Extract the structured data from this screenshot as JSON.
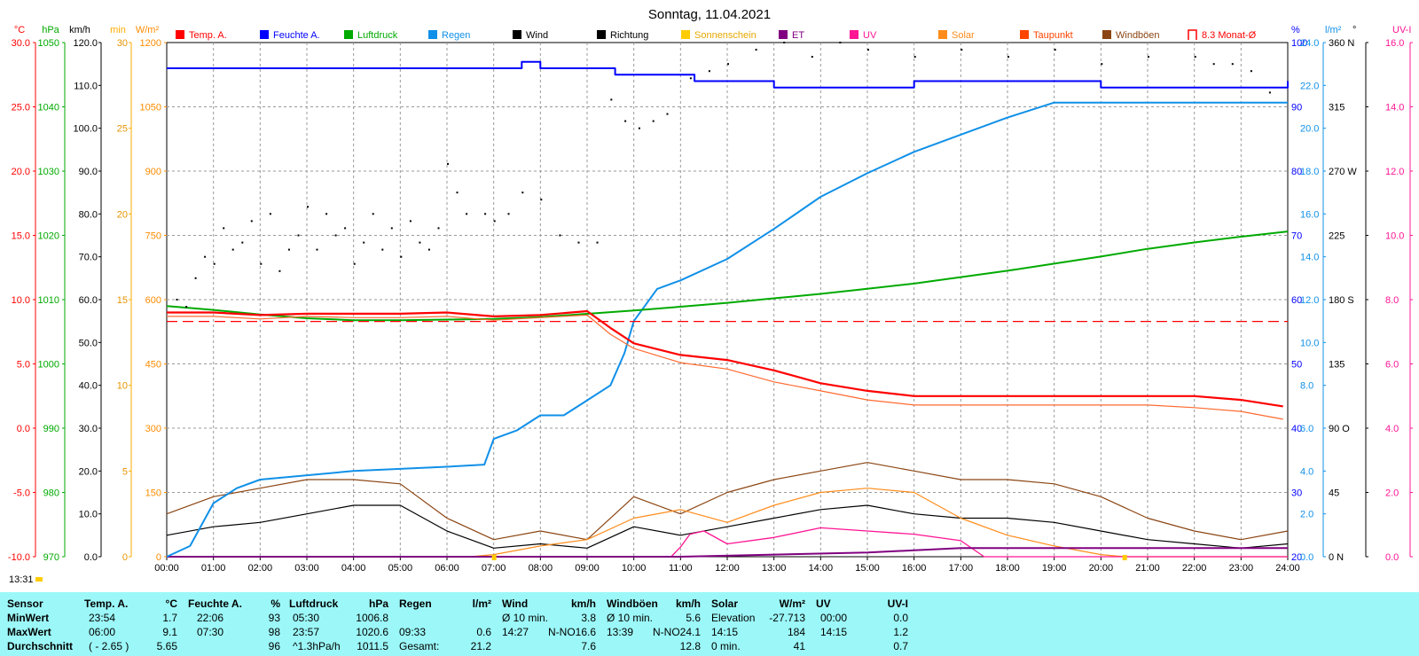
{
  "title": "Sonntag, 11.04.2021",
  "time_marker": "13:31",
  "legend": [
    {
      "label": "Temp. A.",
      "color": "#ff0000"
    },
    {
      "label": "Feuchte A.",
      "color": "#0000ff"
    },
    {
      "label": "Luftdruck",
      "color": "#00aa00"
    },
    {
      "label": "Regen",
      "color": "#1090e8"
    },
    {
      "label": "Wind",
      "color": "#000000"
    },
    {
      "label": "Richtung",
      "color": "#000000"
    },
    {
      "label": "Sonnenschein",
      "color": "#ffcc00"
    },
    {
      "label": "ET",
      "color": "#800080"
    },
    {
      "label": "UV",
      "color": "#ff1493"
    },
    {
      "label": "Solar",
      "color": "#ff8c1a"
    },
    {
      "label": "Taupunkt",
      "color": "#ff4500"
    },
    {
      "label": "Windböen",
      "color": "#8b4513"
    },
    {
      "label": "8.3 Monat-Ø",
      "color": "#ff0000"
    }
  ],
  "chart_data": {
    "type": "line",
    "title": "Sonntag, 11.04.2021",
    "x_ticks": [
      "00:00",
      "01:00",
      "02:00",
      "03:00",
      "04:00",
      "05:00",
      "06:00",
      "07:00",
      "08:00",
      "09:00",
      "10:00",
      "11:00",
      "12:00",
      "13:00",
      "14:00",
      "15:00",
      "16:00",
      "17:00",
      "18:00",
      "19:00",
      "20:00",
      "21:00",
      "22:00",
      "23:00",
      "24:00"
    ],
    "grid": true,
    "left_axes": [
      {
        "unit": "°C",
        "color": "#ff0000",
        "ticks": [
          "30.0",
          "25.0",
          "20.0",
          "15.0",
          "10.0",
          "5.0",
          "0.0",
          "-5.0",
          "-10.0"
        ]
      },
      {
        "unit": "hPa",
        "color": "#00aa00",
        "ticks": [
          "1050",
          "1040",
          "1030",
          "1020",
          "1010",
          "1000",
          "990",
          "980",
          "970"
        ]
      },
      {
        "unit": "km/h",
        "color": "#000000",
        "ticks": [
          "120.0",
          "110.0",
          "100.0",
          "90.0",
          "80.0",
          "70.0",
          "60.0",
          "50.0",
          "40.0",
          "30.0",
          "20.0",
          "10.0",
          "0.0"
        ]
      },
      {
        "unit": "min",
        "color": "#ffaa00",
        "ticks": [
          "30",
          "25",
          "20",
          "15",
          "10",
          "5",
          "0"
        ]
      },
      {
        "unit": "W/m²",
        "color": "#ff8c00",
        "ticks": [
          "1200",
          "1050",
          "900",
          "750",
          "600",
          "450",
          "300",
          "150",
          "0"
        ]
      }
    ],
    "right_axes": [
      {
        "unit": "%",
        "color": "#0000ff",
        "ticks": [
          "100",
          "90",
          "80",
          "70",
          "60",
          "50",
          "40",
          "30",
          "20"
        ]
      },
      {
        "unit": "l/m²",
        "color": "#1090e8",
        "ticks": [
          "24.0",
          "22.0",
          "20.0",
          "18.0",
          "16.0",
          "14.0",
          "12.0",
          "10.0",
          "8.0",
          "6.0",
          "4.0",
          "2.0",
          "0.0"
        ]
      },
      {
        "unit": "°",
        "color": "#000000",
        "ticks": [
          "360 N",
          "315",
          "270 W",
          "225",
          "180 S",
          "135",
          "90 O",
          "45",
          "0 N"
        ]
      },
      {
        "unit": "UV-I",
        "color": "#ff1493",
        "ticks": [
          "16.0",
          "14.0",
          "12.0",
          "10.0",
          "8.0",
          "6.0",
          "4.0",
          "2.0",
          "0.0"
        ]
      }
    ],
    "series": [
      {
        "name": "Temp. A.",
        "unit": "°C",
        "x": [
          0,
          1,
          2,
          3,
          4,
          5,
          6,
          7,
          8,
          9,
          9.5,
          10,
          11,
          12,
          13,
          14,
          15,
          16,
          17,
          18,
          19,
          20,
          21,
          22,
          23,
          23.9
        ],
        "values": [
          9.0,
          9.0,
          8.8,
          8.9,
          8.9,
          8.9,
          9.0,
          8.7,
          8.8,
          9.1,
          7.8,
          6.6,
          5.7,
          5.3,
          4.5,
          3.5,
          2.9,
          2.5,
          2.5,
          2.5,
          2.5,
          2.5,
          2.5,
          2.5,
          2.2,
          1.7
        ]
      },
      {
        "name": "Taupunkt",
        "unit": "°C",
        "x": [
          0,
          1,
          2,
          3,
          4,
          5,
          6,
          7,
          8,
          9,
          9.5,
          10,
          11,
          12,
          13,
          14,
          15,
          16,
          17,
          18,
          19,
          20,
          21,
          22,
          23,
          23.9
        ],
        "values": [
          8.7,
          8.7,
          8.5,
          8.7,
          8.6,
          8.6,
          8.7,
          8.4,
          8.6,
          8.8,
          7.3,
          6.2,
          5.1,
          4.6,
          3.6,
          2.9,
          2.2,
          1.8,
          1.8,
          1.8,
          1.8,
          1.8,
          1.8,
          1.6,
          1.3,
          0.7
        ]
      },
      {
        "name": "Feuchte A.",
        "unit": "%",
        "x": [
          0,
          7.3,
          7.6,
          8.0,
          9.2,
          9.6,
          10.2,
          11.3,
          13.0,
          16.0,
          19.0,
          20.0,
          22.5,
          23.7,
          24.0
        ],
        "values": [
          96,
          96,
          97,
          96,
          96,
          95,
          95,
          94,
          93,
          94,
          94,
          93,
          93,
          93,
          94
        ]
      },
      {
        "name": "Luftdruck",
        "unit": "hPa",
        "x": [
          0,
          1,
          2,
          3,
          4,
          5,
          6,
          7,
          8,
          9,
          10,
          11,
          12,
          13,
          14,
          15,
          16,
          17,
          18,
          19,
          20,
          21,
          22,
          23,
          24
        ],
        "values": [
          1009.0,
          1008.4,
          1007.7,
          1007.1,
          1006.8,
          1006.8,
          1006.9,
          1007.0,
          1007.3,
          1007.8,
          1008.3,
          1008.9,
          1009.5,
          1010.2,
          1010.9,
          1011.7,
          1012.5,
          1013.5,
          1014.5,
          1015.6,
          1016.7,
          1017.9,
          1018.9,
          1019.8,
          1020.6
        ]
      },
      {
        "name": "Regen",
        "unit": "l/m²",
        "x": [
          0,
          0.5,
          1,
          1.5,
          2,
          4,
          6,
          6.8,
          7.0,
          7.5,
          8,
          8.5,
          9,
          9.5,
          9.8,
          10,
          10.5,
          11,
          12,
          13,
          14,
          15,
          16,
          17,
          18,
          19,
          19.2,
          20,
          21,
          22,
          23,
          24
        ],
        "values": [
          0,
          0.5,
          2.5,
          3.2,
          3.6,
          4.0,
          4.2,
          4.3,
          5.5,
          5.9,
          6.6,
          6.6,
          7.3,
          8.0,
          9.5,
          11.0,
          12.5,
          12.9,
          13.9,
          15.3,
          16.8,
          17.9,
          18.9,
          19.7,
          20.5,
          21.2,
          21.2,
          21.2,
          21.2,
          21.2,
          21.2,
          21.2
        ]
      },
      {
        "name": "8.3 Monat-Ø",
        "unit": "°C",
        "x": [
          0,
          24
        ],
        "values": [
          8.3,
          8.3
        ]
      },
      {
        "name": "Wind",
        "unit": "km/h",
        "x": [
          0,
          1,
          2,
          3,
          4,
          5,
          6,
          7,
          8,
          9,
          10,
          11,
          12,
          13,
          14,
          15,
          16,
          17,
          18,
          19,
          20,
          21,
          22,
          23,
          24
        ],
        "values": [
          5,
          7,
          8,
          10,
          12,
          12,
          6,
          2,
          3,
          2,
          7,
          5,
          7,
          9,
          11,
          12,
          10,
          9,
          9,
          8,
          6,
          4,
          3,
          2,
          3
        ]
      },
      {
        "name": "Windböen",
        "unit": "km/h",
        "x": [
          0,
          1,
          2,
          3,
          4,
          5,
          6,
          7,
          8,
          9,
          10,
          11,
          12,
          13,
          14,
          15,
          16,
          17,
          18,
          19,
          20,
          21,
          22,
          23,
          24
        ],
        "values": [
          10,
          14,
          16,
          18,
          18,
          17,
          9,
          4,
          6,
          4,
          14,
          10,
          15,
          18,
          20,
          22,
          20,
          18,
          18,
          17,
          14,
          9,
          6,
          4,
          6
        ]
      },
      {
        "name": "Solar",
        "unit": "W/m²",
        "x": [
          0,
          6.5,
          7,
          8,
          9,
          10,
          11,
          12,
          13,
          14,
          15,
          16,
          17,
          18,
          19,
          20,
          20.5,
          24
        ],
        "values": [
          0,
          0,
          5,
          25,
          40,
          90,
          110,
          80,
          120,
          150,
          160,
          150,
          90,
          50,
          25,
          5,
          0,
          0
        ]
      },
      {
        "name": "UV",
        "unit": "UV-I",
        "x": [
          0,
          10.8,
          11,
          11.2,
          11.5,
          12,
          13,
          14,
          15,
          16,
          17,
          17.5,
          24
        ],
        "values": [
          0,
          0,
          0.3,
          0.7,
          0.8,
          0.4,
          0.6,
          0.9,
          0.8,
          0.7,
          0.5,
          0,
          0
        ]
      },
      {
        "name": "ET",
        "unit": "l/m²",
        "x": [
          0,
          11,
          13,
          15,
          16,
          17,
          18,
          24
        ],
        "values": [
          0,
          0,
          0.1,
          0.2,
          0.3,
          0.4,
          0.4,
          0.4
        ]
      }
    ],
    "direction_points_deg": [
      [
        0.2,
        180
      ],
      [
        0.4,
        175
      ],
      [
        0.6,
        195
      ],
      [
        0.8,
        210
      ],
      [
        1.0,
        205
      ],
      [
        1.2,
        230
      ],
      [
        1.4,
        215
      ],
      [
        1.6,
        220
      ],
      [
        1.8,
        235
      ],
      [
        2.0,
        205
      ],
      [
        2.2,
        240
      ],
      [
        2.4,
        200
      ],
      [
        2.6,
        215
      ],
      [
        2.8,
        225
      ],
      [
        3.0,
        245
      ],
      [
        3.2,
        215
      ],
      [
        3.4,
        240
      ],
      [
        3.6,
        225
      ],
      [
        3.8,
        230
      ],
      [
        4.0,
        205
      ],
      [
        4.2,
        220
      ],
      [
        4.4,
        240
      ],
      [
        4.6,
        215
      ],
      [
        4.8,
        230
      ],
      [
        5.0,
        210
      ],
      [
        5.2,
        235
      ],
      [
        5.4,
        220
      ],
      [
        5.6,
        215
      ],
      [
        5.8,
        230
      ],
      [
        6.0,
        275
      ],
      [
        6.2,
        255
      ],
      [
        6.4,
        240
      ],
      [
        6.8,
        240
      ],
      [
        7.0,
        235
      ],
      [
        7.3,
        240
      ],
      [
        7.6,
        255
      ],
      [
        8.0,
        250
      ],
      [
        8.4,
        225
      ],
      [
        8.8,
        220
      ],
      [
        9.2,
        220
      ],
      [
        9.5,
        320
      ],
      [
        9.8,
        305
      ],
      [
        10.1,
        300
      ],
      [
        10.4,
        305
      ],
      [
        10.7,
        310
      ],
      [
        11.2,
        335
      ],
      [
        11.6,
        340
      ],
      [
        12.0,
        345
      ],
      [
        12.6,
        355
      ],
      [
        13.2,
        360
      ],
      [
        13.8,
        350
      ],
      [
        14.4,
        360
      ],
      [
        15.0,
        355
      ],
      [
        16.0,
        350
      ],
      [
        17.0,
        355
      ],
      [
        18.0,
        350
      ],
      [
        19.0,
        355
      ],
      [
        20.0,
        345
      ],
      [
        21.0,
        350
      ],
      [
        22.0,
        350
      ],
      [
        22.4,
        345
      ],
      [
        22.8,
        345
      ],
      [
        23.2,
        340
      ],
      [
        23.6,
        325
      ]
    ],
    "stats": {
      "headers": {
        "sensor": "Sensor",
        "temp": "Temp. A.",
        "temp_unit": "°C",
        "hum": "Feuchte A.",
        "hum_unit": "%",
        "press": "Luftdruck",
        "press_unit": "hPa",
        "rain": "Regen",
        "rain_unit": "l/m²",
        "wind": "Wind",
        "wind_unit": "km/h",
        "gust": "Windböen",
        "gust_unit": "km/h",
        "solar": "Solar",
        "solar_unit": "W/m²",
        "uv": "UV",
        "uv_unit": "UV-I"
      },
      "rows": [
        {
          "label": "MinWert",
          "temp_time": "23:54",
          "temp": "1.7",
          "hum_time": "22:06",
          "hum": "93",
          "press_time": "05:30",
          "press": "1006.8",
          "rain_time": "",
          "rain": "",
          "wind_label": "Ø 10 min.",
          "wind_dir": "",
          "wind": "3.8",
          "gust_label": "Ø 10 min.",
          "gust_dir": "",
          "gust": "5.6",
          "solar_label": "Elevation",
          "solar": "-27.713",
          "uv_time": "00:00",
          "uv": "0.0"
        },
        {
          "label": "MaxWert",
          "temp_time": "06:00",
          "temp": "9.1",
          "hum_time": "07:30",
          "hum": "98",
          "press_time": "23:57",
          "press": "1020.6",
          "rain_time": "09:33",
          "rain": "0.6",
          "wind_label": "14:27",
          "wind_dir": "N-NO",
          "wind": "16.6",
          "gust_label": "13:39",
          "gust_dir": "N-NO",
          "gust": "24.1",
          "solar_label": "14:15",
          "solar": "184",
          "uv_time": "14:15",
          "uv": "1.2"
        },
        {
          "label": "Durchschnitt",
          "temp_time": "( - 2.65 )",
          "temp": "5.65",
          "hum_time": "",
          "hum": "96",
          "press_time": "^1.3hPa/h",
          "press": "1011.5",
          "rain_time": "Gesamt:",
          "rain": "21.2",
          "wind_label": "",
          "wind_dir": "",
          "wind": "7.6",
          "gust_label": "",
          "gust_dir": "",
          "gust": "12.8",
          "solar_label": "0 min.",
          "solar": "41",
          "uv_time": "",
          "uv": "0.7"
        }
      ]
    }
  }
}
